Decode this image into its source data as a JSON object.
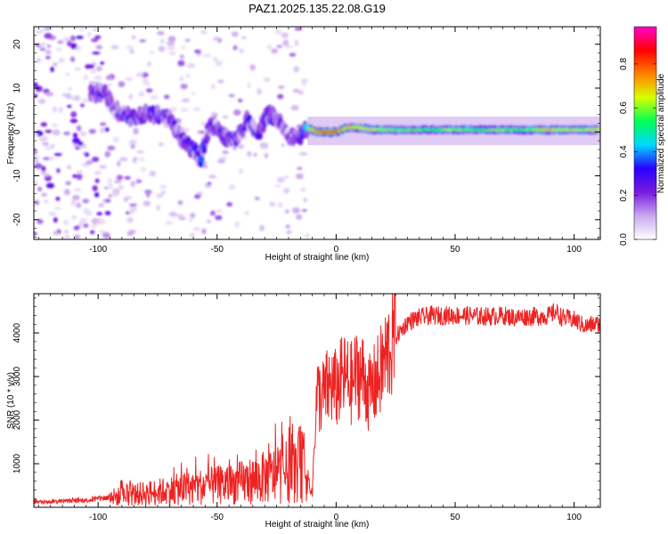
{
  "figure": {
    "title": "PAZ1.2025.135.22.08.G19"
  },
  "chart_data": [
    {
      "type": "heatmap",
      "xlabel": "Height of straight line (km)",
      "ylabel": "Frequency (Hz)",
      "xlim": [
        -127,
        111
      ],
      "ylim": [
        -24.5,
        24
      ],
      "xticks": [
        -100,
        -50,
        0,
        50,
        100
      ],
      "yticks": [
        -20,
        -10,
        0,
        10,
        20
      ],
      "colorbar": {
        "label": "Normalized spectral amplitude",
        "range": [
          0,
          0.97
        ],
        "ticks": [
          0.0,
          0.2,
          0.4,
          0.6,
          0.8
        ],
        "colors": [
          "#ffffff",
          "#c9a8ef",
          "#7a1be0",
          "#2b00ff",
          "#00d8ff",
          "#00ff55",
          "#d8ff00",
          "#ff8000",
          "#ff0000",
          "#ff00c8"
        ]
      },
      "signal_track": [
        {
          "x": -103,
          "y": 9,
          "a": 0.35
        },
        {
          "x": -97,
          "y": 9,
          "a": 0.3
        },
        {
          "x": -93,
          "y": 5,
          "a": 0.25
        },
        {
          "x": -88,
          "y": 4,
          "a": 0.3
        },
        {
          "x": -85,
          "y": 3,
          "a": 0.35
        },
        {
          "x": -80,
          "y": 4,
          "a": 0.3
        },
        {
          "x": -75,
          "y": 4,
          "a": 0.35
        },
        {
          "x": -70,
          "y": 3,
          "a": 0.3
        },
        {
          "x": -67,
          "y": 0,
          "a": 0.25
        },
        {
          "x": -64,
          "y": -2,
          "a": 0.35
        },
        {
          "x": -60,
          "y": -4,
          "a": 0.4
        },
        {
          "x": -57,
          "y": -6,
          "a": 0.45
        },
        {
          "x": -53,
          "y": 2,
          "a": 0.3
        },
        {
          "x": -50,
          "y": 1,
          "a": 0.25
        },
        {
          "x": -47,
          "y": -1,
          "a": 0.3
        },
        {
          "x": -43,
          "y": -2,
          "a": 0.3
        },
        {
          "x": -40,
          "y": 0,
          "a": 0.35
        },
        {
          "x": -37,
          "y": 3,
          "a": 0.35
        },
        {
          "x": -33,
          "y": -1,
          "a": 0.3
        },
        {
          "x": -29,
          "y": 4,
          "a": 0.3
        },
        {
          "x": -25,
          "y": 3,
          "a": 0.25
        },
        {
          "x": -20,
          "y": -1,
          "a": 0.25
        },
        {
          "x": -15,
          "y": -1,
          "a": 0.3
        },
        {
          "x": -12,
          "y": 1,
          "a": 0.6
        },
        {
          "x": -8,
          "y": 0,
          "a": 0.75
        },
        {
          "x": -4,
          "y": 0,
          "a": 0.85
        },
        {
          "x": 0,
          "y": 0,
          "a": 0.8
        },
        {
          "x": 5,
          "y": 1,
          "a": 0.7
        },
        {
          "x": 10,
          "y": 1,
          "a": 0.65
        },
        {
          "x": 15,
          "y": 0.5,
          "a": 0.7
        },
        {
          "x": 20,
          "y": 0.5,
          "a": 0.6
        },
        {
          "x": 30,
          "y": 0.5,
          "a": 0.55
        },
        {
          "x": 40,
          "y": 0.5,
          "a": 0.55
        },
        {
          "x": 50,
          "y": 0.5,
          "a": 0.6
        },
        {
          "x": 60,
          "y": 0.5,
          "a": 0.55
        },
        {
          "x": 70,
          "y": 0.5,
          "a": 0.6
        },
        {
          "x": 80,
          "y": 0.5,
          "a": 0.55
        },
        {
          "x": 90,
          "y": 0.5,
          "a": 0.7
        },
        {
          "x": 100,
          "y": 0.5,
          "a": 0.6
        },
        {
          "x": 110,
          "y": 0.5,
          "a": 0.65
        }
      ]
    },
    {
      "type": "line",
      "xlabel": "Height of straight line (km)",
      "ylabel": "SNR (10 * v/v)",
      "xlim": [
        -127,
        111
      ],
      "ylim": [
        0,
        4900
      ],
      "xticks": [
        -100,
        -50,
        0,
        50,
        100
      ],
      "yticks": [
        1000,
        2000,
        3000,
        4000
      ],
      "color": "#ee2222",
      "series": [
        {
          "x": [
            -127,
            -120,
            -115,
            -110,
            -105,
            -100,
            -95,
            -90,
            -85,
            -80,
            -75,
            -70,
            -65,
            -60,
            -55,
            -50,
            -45,
            -40,
            -35,
            -30,
            -25,
            -20,
            -17,
            -14,
            -12,
            -10,
            -9,
            -8,
            -6,
            -4,
            -2,
            0,
            2,
            4,
            6,
            8,
            10,
            12,
            14,
            16,
            18,
            20,
            22,
            25,
            28,
            30,
            35,
            40,
            45,
            50,
            55,
            60,
            65,
            70,
            75,
            80,
            85,
            90,
            92,
            95,
            100,
            103,
            105,
            108,
            111
          ],
          "values": [
            120,
            130,
            140,
            150,
            160,
            200,
            230,
            250,
            290,
            320,
            350,
            380,
            420,
            450,
            480,
            500,
            520,
            560,
            620,
            680,
            740,
            820,
            900,
            950,
            700,
            300,
            1800,
            2600,
            2500,
            2700,
            2800,
            2700,
            2900,
            3000,
            2800,
            3000,
            3100,
            2900,
            2600,
            2800,
            3000,
            3300,
            3600,
            3900,
            4100,
            4250,
            4350,
            4400,
            4400,
            4400,
            4400,
            4380,
            4380,
            4400,
            4350,
            4380,
            4380,
            4400,
            4500,
            4350,
            4300,
            4200,
            4150,
            4200,
            4200
          ]
        }
      ]
    }
  ]
}
